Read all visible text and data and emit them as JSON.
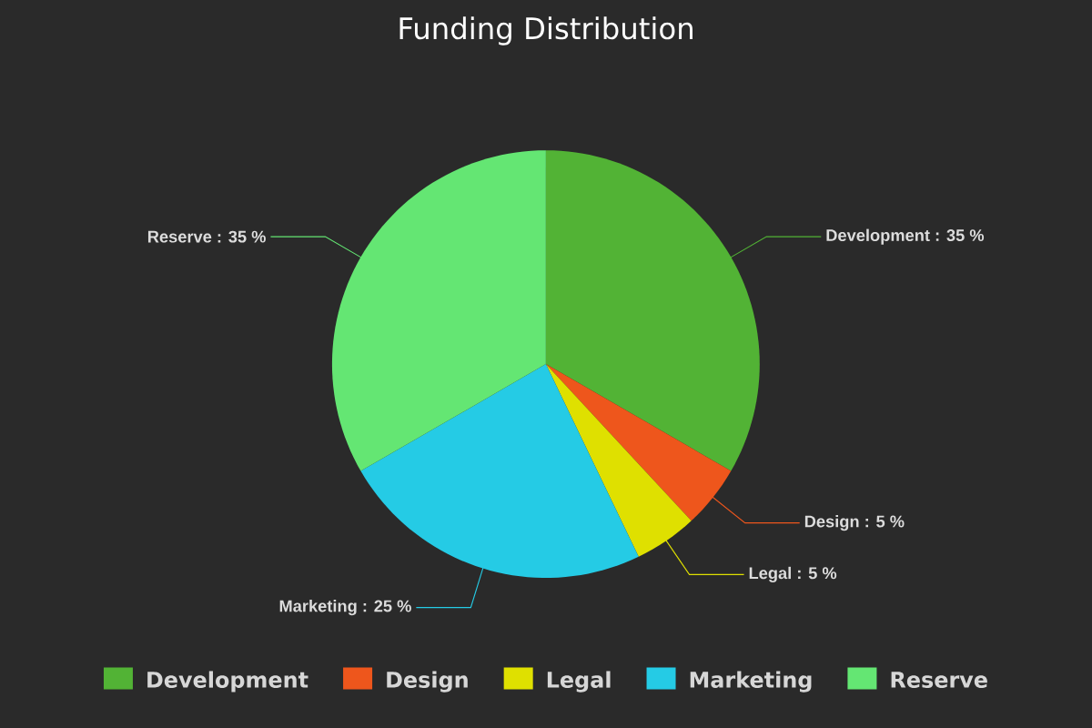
{
  "chart_data": {
    "type": "pie",
    "title": "Funding Distribution",
    "categories": [
      "Development",
      "Design",
      "Legal",
      "Marketing",
      "Reserve"
    ],
    "values": [
      35,
      5,
      5,
      25,
      35
    ],
    "colors": [
      "#52b335",
      "#ee561c",
      "#dfe000",
      "#25cbe5",
      "#64e673"
    ],
    "value_labels": [
      "Development : 35 %",
      "Design : 5 %",
      "Legal : 5 %",
      "Marketing : 25 %",
      "Reserve : 35 %"
    ],
    "legend": "bottom"
  }
}
